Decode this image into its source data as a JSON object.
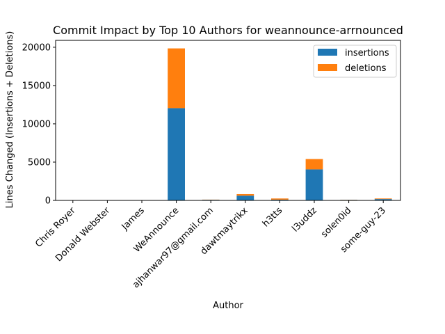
{
  "chart_data": {
    "type": "bar",
    "stacked": true,
    "title": "Commit Impact by Top 10 Authors for weannounce-arrnounced",
    "xlabel": "Author",
    "ylabel": "Lines Changed (Insertions + Deletions)",
    "ylim": [
      0,
      20900
    ],
    "yticks": [
      "0",
      "5000",
      "10000",
      "15000",
      "20000"
    ],
    "grid": false,
    "legend_position": "upper right",
    "categories": [
      "Chris Royer",
      "Donald Webster",
      "James",
      "WeAnnounce",
      "ajhanwar97@gmail.com",
      "dawtmaytrikx",
      "h3tts",
      "l3uddz",
      "solen0id",
      "some-guy-23"
    ],
    "series": [
      {
        "name": "insertions",
        "color": "#1f77b4",
        "values": [
          5,
          5,
          5,
          12050,
          80,
          620,
          100,
          4050,
          70,
          170
        ]
      },
      {
        "name": "deletions",
        "color": "#ff7f0e",
        "values": [
          2,
          2,
          2,
          7800,
          20,
          200,
          150,
          1350,
          15,
          80
        ]
      }
    ]
  }
}
